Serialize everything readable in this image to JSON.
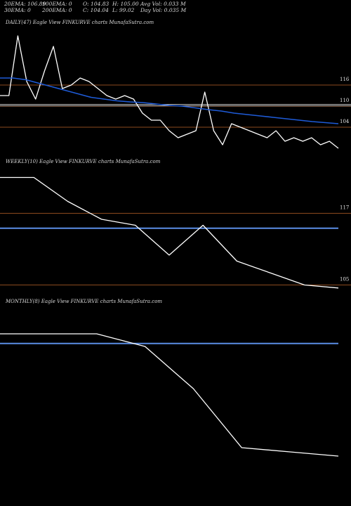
{
  "stats": {
    "row1": [
      "20EMA: 106.89",
      "100EMA: 0",
      "O: 104.83",
      "H: 105.00",
      "Avg Vol: 0.033 M"
    ],
    "row2": [
      "30EMA: 0",
      "200EMA: 0",
      "C: 104.04",
      "L: 99.02",
      "Day Vol: 0.035 M"
    ]
  },
  "colors": {
    "background": "#000000",
    "price_line": "#ffffff",
    "ema_line": "#1e5bd8",
    "level_line": "#8b4a1e",
    "blue_level": "#5b8ee6",
    "grey_level": "#bbbbbb"
  },
  "chart_data": [
    {
      "id": "daily",
      "type": "line",
      "title": "DAILY(47) Eagle  View  FINKURVE charts MunafaSutra.com",
      "level_labels": [
        "116",
        "110",
        "104"
      ],
      "levels": [
        116,
        110,
        104
      ],
      "ylim": [
        97,
        131
      ],
      "series": [
        {
          "name": "",
          "color": "#ffffff",
          "values": [
            113,
            113,
            130,
            117,
            112,
            120,
            127,
            115,
            116,
            118,
            117,
            115,
            113,
            112,
            113,
            112,
            108,
            106,
            106,
            103,
            101,
            102,
            103,
            114,
            103,
            99,
            105,
            104,
            103,
            102,
            101,
            103,
            100,
            101,
            100,
            101,
            99,
            100,
            98
          ]
        },
        {
          "name": "",
          "color": "#1e5bd8",
          "values": [
            118,
            118,
            117.5,
            116.5,
            115.5,
            114.5,
            113.5,
            112.5,
            112,
            111.5,
            111.2,
            111,
            110.6,
            110.2,
            110,
            109.5,
            109,
            108.6,
            108,
            107.6,
            107.2,
            106.8,
            106.4,
            106,
            105.6,
            105.3,
            105
          ]
        }
      ]
    },
    {
      "id": "weekly",
      "type": "line",
      "title": "WEEKLY(10) Eagle  View  FINKURVE charts MunafaSutra.com",
      "level_labels": [
        "117",
        "105"
      ],
      "levels": [
        117,
        105
      ],
      "ylim": [
        104,
        124
      ],
      "series": [
        {
          "name": "",
          "color": "#ffffff",
          "values": [
            123,
            123,
            119,
            116,
            115,
            110,
            115,
            109,
            107,
            105,
            104.5
          ]
        }
      ]
    },
    {
      "id": "monthly",
      "type": "line",
      "title": "MONTHLY(8) Eagle  View  FINKURVE charts MunafaSutra.com",
      "level_labels": [],
      "levels": [],
      "ylim": [
        100,
        140
      ],
      "series": [
        {
          "name": "",
          "color": "#ffffff",
          "values": [
            137,
            137,
            137,
            134,
            124,
            110,
            109,
            108
          ]
        }
      ]
    }
  ]
}
